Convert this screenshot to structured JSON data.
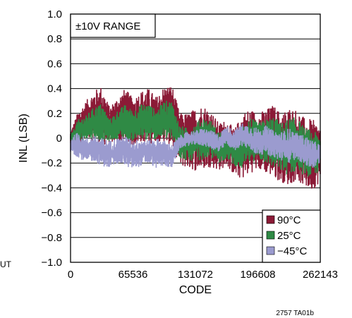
{
  "chart_data": {
    "type": "line",
    "title": "",
    "xlabel": "CODE",
    "ylabel": "INL (LSB)",
    "xlim": [
      0,
      262143
    ],
    "ylim": [
      -1.0,
      1.0
    ],
    "grid": true,
    "x_tick_labels": [
      "0",
      "65536",
      "131072",
      "196608",
      "262143"
    ],
    "y_tick_labels": [
      "1.0",
      "0.8",
      "0.6",
      "0.4",
      "0.2",
      "0",
      "−0.2",
      "−0.4",
      "−0.6",
      "−0.8",
      "−1.0"
    ],
    "annotation": "±10V RANGE",
    "legend_position": "bottom-right",
    "series": [
      {
        "name": "90°C",
        "color": "#8b1a36",
        "x": [
          0,
          8192,
          16384,
          24576,
          32768,
          40960,
          49152,
          57344,
          65536,
          73728,
          81920,
          90112,
          98304,
          106496,
          114688,
          122880,
          131072,
          139264,
          147456,
          155648,
          163840,
          172032,
          180224,
          188416,
          196608,
          204800,
          212992,
          221184,
          229376,
          237568,
          245760,
          253952,
          262143
        ],
        "y_max": [
          0.05,
          0.22,
          0.3,
          0.38,
          0.42,
          0.25,
          0.33,
          0.4,
          0.32,
          0.38,
          0.4,
          0.33,
          0.42,
          0.43,
          0.2,
          0.2,
          0.24,
          0.27,
          0.22,
          0.12,
          0.15,
          0.07,
          0.2,
          0.24,
          0.2,
          0.23,
          0.27,
          0.2,
          0.25,
          0.23,
          0.16,
          0.15,
          0.1
        ],
        "y_min": [
          -0.05,
          -0.08,
          -0.03,
          -0.02,
          -0.06,
          -0.04,
          -0.03,
          -0.04,
          -0.06,
          -0.03,
          -0.05,
          -0.02,
          -0.03,
          -0.06,
          -0.22,
          -0.24,
          -0.26,
          -0.25,
          -0.23,
          -0.26,
          -0.22,
          -0.3,
          -0.33,
          -0.28,
          -0.25,
          -0.28,
          -0.32,
          -0.35,
          -0.38,
          -0.33,
          -0.4,
          -0.42,
          -0.35
        ]
      },
      {
        "name": "25°C",
        "color": "#2f8a45",
        "x": [
          0,
          8192,
          16384,
          24576,
          32768,
          40960,
          49152,
          57344,
          65536,
          73728,
          81920,
          90112,
          98304,
          106496,
          114688,
          122880,
          131072,
          139264,
          147456,
          155648,
          163840,
          172032,
          180224,
          188416,
          196608,
          204800,
          212992,
          221184,
          229376,
          237568,
          245760,
          253952,
          262143
        ],
        "y_max": [
          0.02,
          0.15,
          0.18,
          0.25,
          0.28,
          0.15,
          0.22,
          0.27,
          0.22,
          0.27,
          0.28,
          0.22,
          0.3,
          0.3,
          0.1,
          0.08,
          0.12,
          0.17,
          0.14,
          0.05,
          0.07,
          0.02,
          0.12,
          0.17,
          0.12,
          0.15,
          0.18,
          0.12,
          0.16,
          0.17,
          0.08,
          0.06,
          0.02
        ],
        "y_min": [
          -0.02,
          -0.04,
          0.0,
          0.0,
          -0.02,
          -0.02,
          0.0,
          0.0,
          -0.02,
          0.0,
          -0.02,
          0.0,
          0.0,
          -0.02,
          -0.16,
          -0.18,
          -0.18,
          -0.17,
          -0.16,
          -0.2,
          -0.16,
          -0.22,
          -0.25,
          -0.2,
          -0.17,
          -0.2,
          -0.24,
          -0.27,
          -0.3,
          -0.26,
          -0.3,
          -0.32,
          -0.26
        ]
      },
      {
        "name": "−45°C",
        "color": "#9b9bcf",
        "x": [
          0,
          8192,
          16384,
          24576,
          32768,
          40960,
          49152,
          57344,
          65536,
          73728,
          81920,
          90112,
          98304,
          106496,
          114688,
          122880,
          131072,
          139264,
          147456,
          155648,
          163840,
          172032,
          180224,
          188416,
          196608,
          204800,
          212992,
          221184,
          229376,
          237568,
          245760,
          253952,
          262143
        ],
        "y_max": [
          0.0,
          0.05,
          0.0,
          0.02,
          0.0,
          -0.02,
          0.0,
          0.02,
          -0.02,
          0.0,
          -0.02,
          0.0,
          -0.02,
          -0.05,
          0.02,
          0.05,
          0.06,
          0.08,
          0.06,
          0.03,
          0.1,
          0.06,
          0.12,
          0.1,
          0.08,
          0.1,
          0.06,
          0.05,
          0.08,
          0.04,
          0.02,
          -0.02,
          -0.05
        ],
        "y_min": [
          -0.12,
          -0.15,
          -0.2,
          -0.18,
          -0.22,
          -0.24,
          -0.2,
          -0.22,
          -0.25,
          -0.22,
          -0.2,
          -0.24,
          -0.22,
          -0.24,
          -0.08,
          -0.06,
          -0.05,
          -0.06,
          -0.08,
          -0.12,
          -0.05,
          -0.1,
          -0.06,
          -0.1,
          -0.14,
          -0.12,
          -0.16,
          -0.18,
          -0.2,
          -0.16,
          -0.22,
          -0.25,
          -0.2
        ]
      }
    ],
    "side_fragment": "UT",
    "figure_id": "2757 TA01b"
  }
}
